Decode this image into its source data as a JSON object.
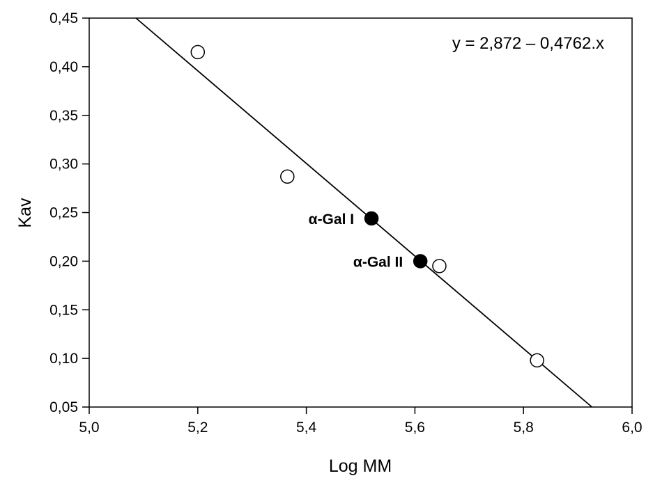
{
  "chart_data": {
    "type": "scatter",
    "title": "",
    "xlabel": "Log MM",
    "ylabel": "Kav",
    "xlim": [
      5.0,
      6.0
    ],
    "ylim": [
      0.05,
      0.45
    ],
    "x_ticks": [
      "5,0",
      "5,2",
      "5,4",
      "5,6",
      "5,8",
      "6,0"
    ],
    "y_ticks": [
      "0,05",
      "0,10",
      "0,15",
      "0,20",
      "0,25",
      "0,30",
      "0,35",
      "0,40",
      "0,45"
    ],
    "grid": false,
    "equation": "y = 2,872 – 0,4762.x",
    "regression": {
      "intercept": 2.872,
      "slope": -0.4762
    },
    "series": [
      {
        "marker": "open-circle",
        "points": [
          {
            "x": 5.2,
            "y": 0.415
          },
          {
            "x": 5.365,
            "y": 0.287
          },
          {
            "x": 5.645,
            "y": 0.195
          },
          {
            "x": 5.825,
            "y": 0.098
          }
        ]
      },
      {
        "marker": "filled-circle",
        "points": [
          {
            "x": 5.52,
            "y": 0.244,
            "label": "α-Gal  I"
          },
          {
            "x": 5.61,
            "y": 0.2,
            "label": "α-Gal  II"
          }
        ]
      }
    ]
  }
}
